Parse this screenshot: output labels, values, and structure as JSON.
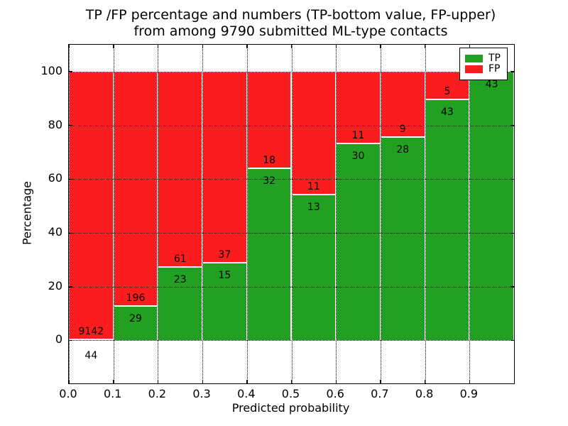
{
  "title": {
    "line1": "TP /FP percentage and numbers (TP-bottom value, FP-upper)",
    "line2": "from among 9790 submitted ML-type contacts"
  },
  "chart_data": {
    "type": "bar",
    "stacked": true,
    "normalized_to_percent": true,
    "title": "TP /FP percentage and numbers (TP-bottom value, FP-upper) from among 9790 submitted ML-type contacts",
    "xlabel": "Predicted probability",
    "ylabel": "Percentage",
    "total_contacts": 9790,
    "bin_edges": [
      0.0,
      0.1,
      0.2,
      0.3,
      0.4,
      0.5,
      0.6,
      0.7,
      0.8,
      0.9,
      1.0
    ],
    "categories": [
      "0.0-0.1",
      "0.1-0.2",
      "0.2-0.3",
      "0.3-0.4",
      "0.4-0.5",
      "0.5-0.6",
      "0.6-0.7",
      "0.7-0.8",
      "0.8-0.9",
      "0.9-1.0"
    ],
    "series": [
      {
        "name": "TP",
        "color": "#22a022",
        "values": [
          44,
          29,
          23,
          15,
          32,
          13,
          30,
          28,
          43,
          43
        ]
      },
      {
        "name": "FP",
        "color": "#fb1d1d",
        "values": [
          9142,
          196,
          61,
          37,
          18,
          11,
          11,
          9,
          5,
          0
        ]
      }
    ],
    "x_ticks": [
      "0.0",
      "0.1",
      "0.2",
      "0.3",
      "0.4",
      "0.5",
      "0.6",
      "0.7",
      "0.8",
      "0.9"
    ],
    "y_ticks": [
      "0",
      "20",
      "40",
      "60",
      "80",
      "100"
    ],
    "xlim": [
      0.0,
      1.0
    ],
    "ylim": [
      -16,
      110
    ],
    "grid": "dotted",
    "bar_edge_color": "#ffffff",
    "legend": {
      "position": "upper right",
      "entries": [
        "TP",
        "FP"
      ]
    }
  }
}
